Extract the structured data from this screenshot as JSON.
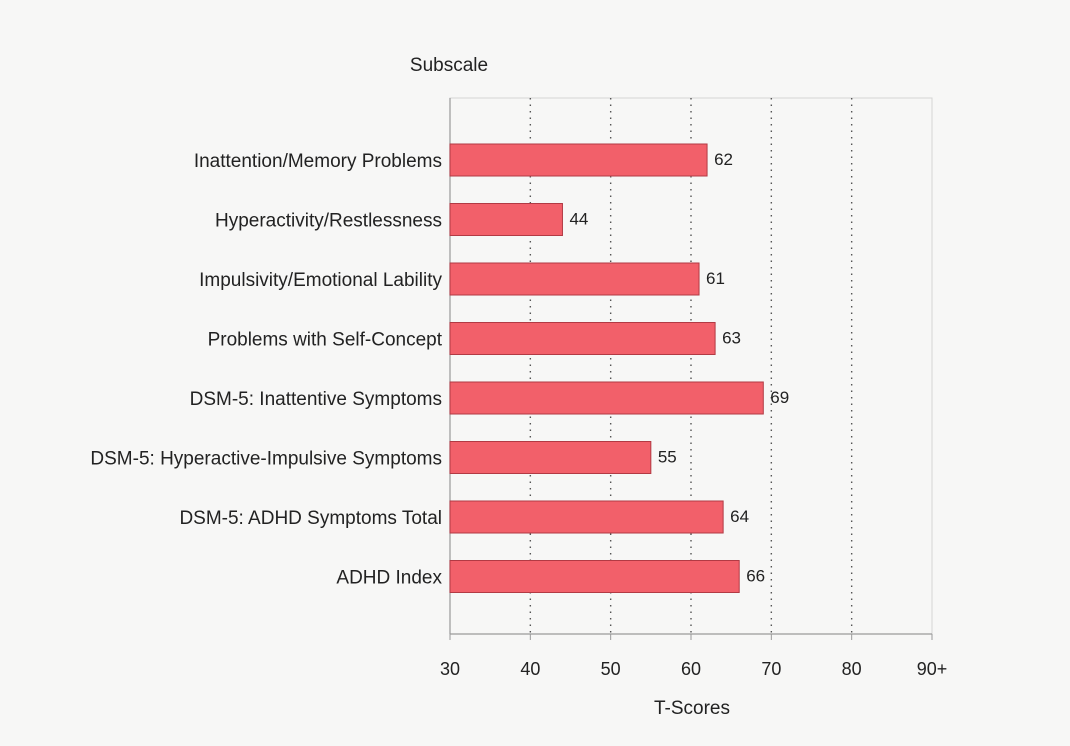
{
  "chart_data": {
    "type": "bar",
    "orientation": "horizontal",
    "y_axis_title": "Subscale",
    "xlabel": "T-Scores",
    "categories": [
      "Inattention/Memory Problems",
      "Hyperactivity/Restlessness",
      "Impulsivity/Emotional Lability",
      "Problems with Self-Concept",
      "DSM-5: Inattentive Symptoms",
      "DSM-5: Hyperactive-Impulsive Symptoms",
      "DSM-5: ADHD Symptoms Total",
      "ADHD Index"
    ],
    "values": [
      62,
      44,
      61,
      63,
      69,
      55,
      64,
      66
    ],
    "xlim": [
      30,
      90
    ],
    "xticks": [
      30,
      40,
      50,
      60,
      70,
      80,
      90
    ],
    "xtick_labels": [
      "30",
      "40",
      "50",
      "60",
      "70",
      "80",
      "90+"
    ],
    "grid": "vertical dotted",
    "legend": "none",
    "bar_color": "#f2606a",
    "bar_edge_color": "#b23a44"
  }
}
